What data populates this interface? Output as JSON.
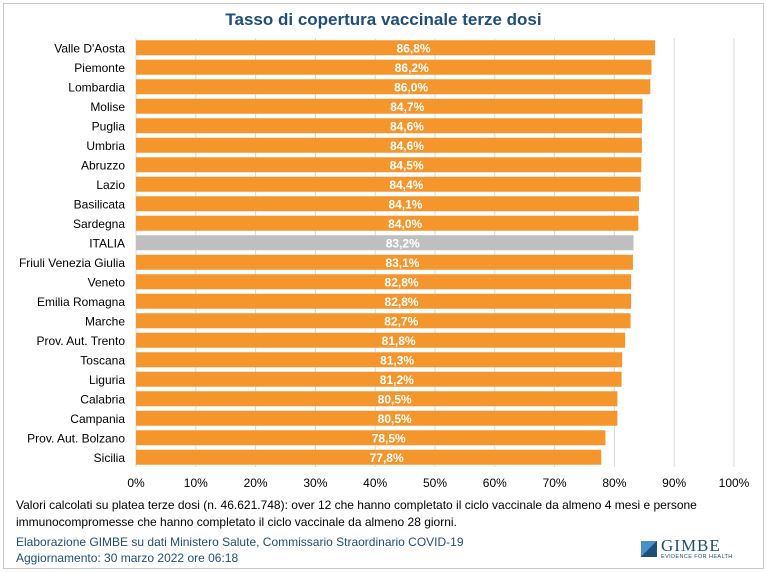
{
  "chart_data": {
    "type": "bar",
    "orientation": "horizontal",
    "title": "Tasso di copertura vaccinale terze dosi",
    "xlim": [
      0,
      100
    ],
    "x_ticks": [
      "0%",
      "10%",
      "20%",
      "30%",
      "40%",
      "50%",
      "60%",
      "70%",
      "80%",
      "90%",
      "100%"
    ],
    "grid": true,
    "categories": [
      "Valle D'Aosta",
      "Piemonte",
      "Lombardia",
      "Molise",
      "Puglia",
      "Umbria",
      "Abruzzo",
      "Lazio",
      "Basilicata",
      "Sardegna",
      "ITALIA",
      "Friuli Venezia Giulia",
      "Veneto",
      "Emilia Romagna",
      "Marche",
      "Prov. Aut. Trento",
      "Toscana",
      "Liguria",
      "Calabria",
      "Campania",
      "Prov. Aut. Bolzano",
      "Sicilia"
    ],
    "values": [
      86.8,
      86.2,
      86.0,
      84.7,
      84.6,
      84.6,
      84.5,
      84.4,
      84.1,
      84.0,
      83.2,
      83.1,
      82.8,
      82.8,
      82.7,
      81.8,
      81.3,
      81.2,
      80.5,
      80.5,
      78.5,
      77.8
    ],
    "labels": [
      "86,8%",
      "86,2%",
      "86,0%",
      "84,7%",
      "84,6%",
      "84,6%",
      "84,5%",
      "84,4%",
      "84,1%",
      "84,0%",
      "83,2%",
      "83,1%",
      "82,8%",
      "82,8%",
      "82,7%",
      "81,8%",
      "81,3%",
      "81,2%",
      "80,5%",
      "80,5%",
      "78,5%",
      "77,8%"
    ],
    "highlight": "ITALIA",
    "colors": {
      "bar": "#f5962d",
      "highlight": "#bfbfbf",
      "bar_label": "#ffffff",
      "grid": "#d9d9d9",
      "title": "#1f4e79"
    }
  },
  "footnote": "Valori calcolati su platea terze dosi (n. 46.621.748): over 12 che hanno completato il ciclo vaccinale da almeno 4 mesi e persone immunocompromesse che hanno completato il ciclo vaccinale da almeno 28 giorni.",
  "credit": {
    "line1": "Elaborazione GIMBE su dati Ministero Salute, Commissario Straordinario COVID-19",
    "line2": "Aggiornamento: 30 marzo 2022 ore 06:18"
  },
  "logo": {
    "name": "GIMBE",
    "tagline": "EVIDENCE FOR HEALTH",
    "icon": "gimbe-logo-mark"
  }
}
